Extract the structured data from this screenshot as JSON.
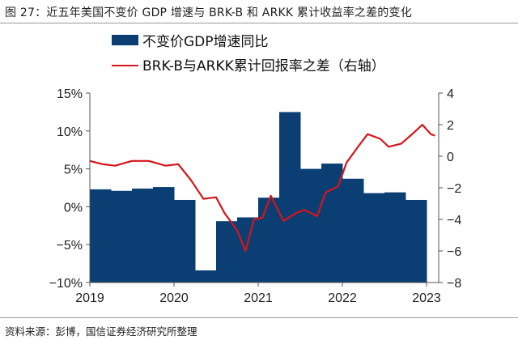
{
  "title": "图 27：近五年美国不变价 GDP 增速与 BRK-B 和 ARKK 累计收益率之差的变化",
  "source": "资料来源：彭博，国信证券经济研究所整理",
  "colors": {
    "bar": "#0b3f74",
    "line": "#d7141a",
    "axis": "#555555"
  },
  "chart_data": {
    "type": "bar+line",
    "title": "近五年美国不变价 GDP 增速与 BRK-B 和 ARKK 累计收益率之差的变化",
    "legend": [
      "不变价GDP增速同比",
      "BRK-B与ARKK累计回报率之差（右轴）"
    ],
    "legend_position": "top",
    "x_ticks": [
      "2019",
      "2020",
      "2021",
      "2022",
      "2023"
    ],
    "categories": [
      "2019Q1",
      "2019Q2",
      "2019Q3",
      "2019Q4",
      "2020Q1",
      "2020Q2",
      "2020Q3",
      "2020Q4",
      "2021Q1",
      "2021Q2",
      "2021Q3",
      "2021Q4",
      "2022Q1",
      "2022Q2",
      "2022Q3",
      "2022Q4"
    ],
    "series": [
      {
        "name": "不变价GDP增速同比",
        "type": "bar",
        "axis": "left",
        "values": [
          2.3,
          2.1,
          2.4,
          2.6,
          0.9,
          -8.4,
          -1.9,
          -1.4,
          1.2,
          12.5,
          5.0,
          5.7,
          3.7,
          1.8,
          1.9,
          0.9
        ]
      },
      {
        "name": "BRK-B与ARKK累计回报率之差（右轴）",
        "type": "line",
        "axis": "right",
        "x": [
          2019.0,
          2019.15,
          2019.3,
          2019.5,
          2019.7,
          2019.9,
          2020.05,
          2020.2,
          2020.35,
          2020.5,
          2020.6,
          2020.75,
          2020.85,
          2020.95,
          2021.05,
          2021.15,
          2021.3,
          2021.45,
          2021.55,
          2021.7,
          2021.8,
          2021.95,
          2022.05,
          2022.2,
          2022.3,
          2022.45,
          2022.55,
          2022.7,
          2022.85,
          2022.95,
          2023.05,
          2023.1
        ],
        "values": [
          -0.3,
          -0.5,
          -0.6,
          -0.3,
          -0.3,
          -0.6,
          -0.5,
          -1.5,
          -2.7,
          -2.6,
          -3.6,
          -4.7,
          -6.0,
          -4.0,
          -3.9,
          -2.5,
          -4.1,
          -3.6,
          -3.4,
          -3.8,
          -2.3,
          -1.9,
          -0.4,
          0.7,
          1.4,
          1.1,
          0.6,
          0.8,
          1.5,
          2.0,
          1.4,
          1.3
        ]
      }
    ],
    "ylabel_left": "",
    "ylim_left": [
      -10,
      15
    ],
    "yticks_left": [
      "15%",
      "10%",
      "5%",
      "0%",
      "-5%",
      "-10%"
    ],
    "ylabel_right": "",
    "ylim_right": [
      -8,
      4
    ],
    "yticks_right": [
      "4",
      "2",
      "0",
      "-2",
      "-4",
      "-6",
      "-8"
    ],
    "xlabel": "",
    "grid": false
  }
}
